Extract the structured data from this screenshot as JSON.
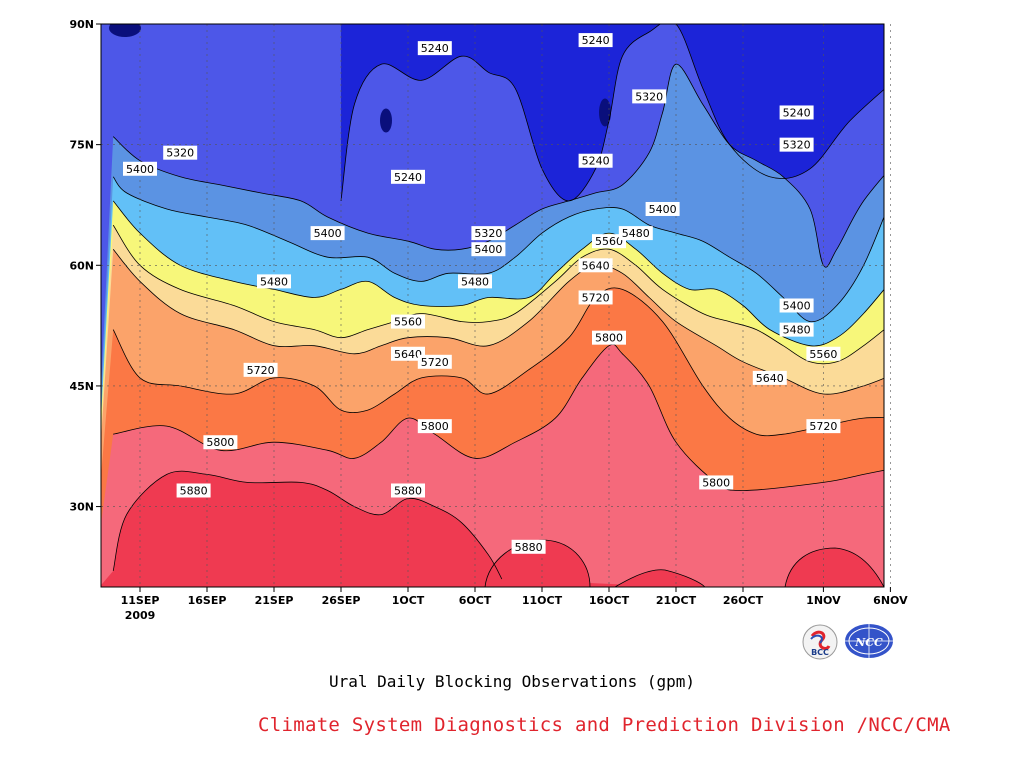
{
  "chart_data": {
    "type": "contour",
    "title": "Ural Daily Blocking Observations (gpm)",
    "credit": "Climate System Diagnostics and Prediction Division /NCC/CMA",
    "year_label": "2009",
    "x_ticks": [
      "11SEP",
      "16SEP",
      "21SEP",
      "26SEP",
      "1OCT",
      "6OCT",
      "11OCT",
      "16OCT",
      "21OCT",
      "26OCT",
      "1NOV",
      "6NOV"
    ],
    "y_ticks": [
      "30N",
      "45N",
      "60N",
      "75N",
      "90N"
    ],
    "ylim": [
      20,
      90
    ],
    "levels": [
      5240,
      5320,
      5400,
      5480,
      5560,
      5640,
      5720,
      5800,
      5880
    ],
    "fill_colors": [
      "#0a0f7c",
      "#1c24d8",
      "#4d57e8",
      "#5b93e3",
      "#62c0f7",
      "#f7f77a",
      "#fbdb98",
      "#fba36a",
      "#fb7845",
      "#f5697b",
      "#ef3a51"
    ],
    "contours": [
      {
        "level": 5880,
        "x": [
          "9SEP",
          "10SEP",
          "13SEP",
          "16SEP",
          "19SEP",
          "23SEP",
          "25SEP",
          "27SEP",
          "29SEP",
          "1OCT",
          "3OCT",
          "5OCT",
          "7OCT",
          "8OCT"
        ],
        "y": [
          22,
          29,
          34,
          34,
          33,
          33,
          32,
          30,
          29,
          31,
          30,
          28,
          24,
          21
        ]
      },
      {
        "level": 5800,
        "x": [
          "9SEP",
          "13SEP",
          "17SEP",
          "21SEP",
          "25SEP",
          "27SEP",
          "29SEP",
          "1OCT",
          "3OCT",
          "6OCT",
          "9OCT",
          "12OCT",
          "14OCT",
          "16OCT",
          "17OCT",
          "19OCT",
          "21OCT",
          "24OCT",
          "26OCT",
          "1NOV",
          "4NOV",
          "7NOV"
        ],
        "y": [
          39,
          40,
          37,
          38,
          37,
          36,
          38,
          41,
          39,
          36,
          38,
          41,
          46,
          50,
          49,
          45,
          38,
          33,
          32,
          33,
          34,
          35
        ]
      },
      {
        "level": 5720,
        "x": [
          "9SEP",
          "11SEP",
          "14SEP",
          "18SEP",
          "21SEP",
          "24SEP",
          "26SEP",
          "28SEP",
          "30SEP",
          "2OCT",
          "5OCT",
          "7OCT",
          "10OCT",
          "13OCT",
          "15OCT",
          "17OCT",
          "20OCT",
          "23OCT",
          "25OCT",
          "27OCT",
          "29OCT",
          "1NOV",
          "4NOV",
          "7NOV"
        ],
        "y": [
          52,
          46,
          45,
          44,
          46,
          45,
          42,
          42,
          44,
          46,
          46,
          44,
          47,
          51,
          56,
          57,
          53,
          45,
          41,
          39,
          39,
          40,
          41,
          41
        ]
      },
      {
        "level": 5640,
        "x": [
          "9SEP",
          "11SEP",
          "14SEP",
          "18SEP",
          "21SEP",
          "24SEP",
          "27SEP",
          "29SEP",
          "1OCT",
          "4OCT",
          "7OCT",
          "10OCT",
          "13OCT",
          "15OCT",
          "17OCT",
          "19OCT",
          "21OCT",
          "24OCT",
          "26OCT",
          "29OCT",
          "1NOV",
          "4NOV",
          "7NOV"
        ],
        "y": [
          62,
          58,
          54,
          52,
          50,
          50,
          49,
          50,
          51,
          51,
          50,
          53,
          58,
          60,
          59,
          56,
          53,
          50,
          48,
          46,
          44,
          45,
          47
        ]
      },
      {
        "level": 5560,
        "x": [
          "9SEP",
          "11SEP",
          "14SEP",
          "18SEP",
          "21SEP",
          "24SEP",
          "26SEP",
          "28SEP",
          "30SEP",
          "2OCT",
          "5OCT",
          "7OCT",
          "9OCT",
          "12OCT",
          "14OCT",
          "16OCT",
          "18OCT",
          "20OCT",
          "23OCT",
          "25OCT",
          "27OCT",
          "29OCT",
          "31OCT",
          "2NOV",
          "4NOV",
          "7NOV"
        ],
        "y": [
          65,
          60,
          57,
          55,
          53,
          52,
          51,
          52,
          53,
          54,
          53,
          53,
          54,
          58,
          61,
          62,
          60,
          57,
          54,
          53,
          52,
          50,
          48,
          48,
          50,
          54
        ]
      },
      {
        "level": 5480,
        "x": [
          "9SEP",
          "11SEP",
          "14SEP",
          "18SEP",
          "21SEP",
          "24SEP",
          "26SEP",
          "28SEP",
          "30SEP",
          "2OCT",
          "5OCT",
          "7OCT",
          "10OCT",
          "12OCT",
          "14OCT",
          "16OCT",
          "18OCT",
          "20OCT",
          "22OCT",
          "24OCT",
          "26OCT",
          "28OCT",
          "31OCT",
          "2NOV",
          "4NOV",
          "7NOV"
        ],
        "y": [
          68,
          64,
          60,
          58,
          57,
          56,
          57,
          58,
          56,
          55,
          55,
          56,
          56,
          59,
          62,
          64,
          62,
          59,
          57,
          57,
          55,
          52,
          50,
          51,
          54,
          60
        ]
      },
      {
        "level": 5400,
        "x": [
          "9SEP",
          "10SEP",
          "13SEP",
          "16SEP",
          "19SEP",
          "22SEP",
          "25SEP",
          "28SEP",
          "30SEP",
          "2OCT",
          "4OCT",
          "7OCT",
          "9OCT",
          "11OCT",
          "13OCT",
          "15OCT",
          "17OCT",
          "19OCT",
          "21OCT",
          "23OCT",
          "25OCT",
          "27OCT",
          "29OCT",
          "31OCT",
          "2NOV",
          "4NOV",
          "6NOV",
          "7NOV"
        ],
        "y": [
          71,
          69,
          67,
          66,
          65,
          63,
          61,
          61,
          59,
          58,
          59,
          59,
          61,
          64,
          66,
          67,
          67,
          65,
          64,
          63,
          61,
          59,
          56,
          53,
          55,
          60,
          68,
          72
        ]
      },
      {
        "level": 5320,
        "x": [
          "9SEP",
          "11SEP",
          "14SEP",
          "17SEP",
          "20SEP",
          "23SEP",
          "25SEP",
          "28SEP",
          "1OCT",
          "3OCT",
          "5OCT",
          "7OCT",
          "9OCT",
          "11OCT",
          "13OCT",
          "15OCT",
          "17OCT",
          "19OCT",
          "20OCT",
          "21OCT",
          "23OCT",
          "25OCT",
          "27OCT",
          "29OCT",
          "31OCT",
          "1NOV",
          "2NOV",
          "4NOV",
          "7NOV"
        ],
        "y": [
          76,
          73,
          71,
          70,
          69,
          68,
          66,
          64,
          63,
          62,
          62,
          63,
          65,
          67,
          68,
          69,
          70,
          74,
          79,
          85,
          80,
          75,
          73,
          71,
          67,
          60,
          62,
          68,
          74
        ]
      },
      {
        "level": 5240,
        "x": [
          "26SEP",
          "27SEP",
          "29SEP",
          "2OCT",
          "5OCT",
          "7OCT",
          "9OCT",
          "11OCT",
          "13OCT",
          "15OCT",
          "16OCT",
          "17OCT",
          "19OCT",
          "21OCT",
          "23OCT",
          "25OCT",
          "28OCT",
          "31OCT",
          "3NOV",
          "7NOV"
        ],
        "y": [
          68,
          80,
          85,
          83,
          86,
          84,
          82,
          72,
          68,
          72,
          78,
          86,
          89,
          90,
          82,
          75,
          71,
          72,
          78,
          84
        ]
      }
    ],
    "contour_labels": [
      {
        "text": "5240",
        "x": "3OCT",
        "y": 87
      },
      {
        "text": "5240",
        "x": "15OCT",
        "y": 88
      },
      {
        "text": "5320",
        "x": "19OCT",
        "y": 81
      },
      {
        "text": "5240",
        "x": "30OCT",
        "y": 79
      },
      {
        "text": "5320",
        "x": "14SEP",
        "y": 74
      },
      {
        "text": "5240",
        "x": "15OCT",
        "y": 73
      },
      {
        "text": "5320",
        "x": "30OCT",
        "y": 75
      },
      {
        "text": "5400",
        "x": "11SEP",
        "y": 72
      },
      {
        "text": "5240",
        "x": "1OCT",
        "y": 71
      },
      {
        "text": "5400",
        "x": "20OCT",
        "y": 67
      },
      {
        "text": "5400",
        "x": "25SEP",
        "y": 64
      },
      {
        "text": "5320",
        "x": "7OCT",
        "y": 64
      },
      {
        "text": "5560",
        "x": "16OCT",
        "y": 63
      },
      {
        "text": "5480",
        "x": "18OCT",
        "y": 64
      },
      {
        "text": "5400",
        "x": "7OCT",
        "y": 62
      },
      {
        "text": "5640",
        "x": "15OCT",
        "y": 60
      },
      {
        "text": "5480",
        "x": "21SEP",
        "y": 58
      },
      {
        "text": "5480",
        "x": "6OCT",
        "y": 58
      },
      {
        "text": "5720",
        "x": "15OCT",
        "y": 56
      },
      {
        "text": "5400",
        "x": "30OCT",
        "y": 55
      },
      {
        "text": "5560",
        "x": "1OCT",
        "y": 53
      },
      {
        "text": "5480",
        "x": "30OCT",
        "y": 52
      },
      {
        "text": "5800",
        "x": "16OCT",
        "y": 51
      },
      {
        "text": "5640",
        "x": "1OCT",
        "y": 49
      },
      {
        "text": "5560",
        "x": "1NOV",
        "y": 49
      },
      {
        "text": "5720",
        "x": "3OCT",
        "y": 48
      },
      {
        "text": "5720",
        "x": "20SEP",
        "y": 47
      },
      {
        "text": "5640",
        "x": "28OCT",
        "y": 46
      },
      {
        "text": "5800",
        "x": "3OCT",
        "y": 40
      },
      {
        "text": "5720",
        "x": "1NOV",
        "y": 40
      },
      {
        "text": "5800",
        "x": "17SEP",
        "y": 38
      },
      {
        "text": "5800",
        "x": "24OCT",
        "y": 33
      },
      {
        "text": "5880",
        "x": "15SEP",
        "y": 32
      },
      {
        "text": "5880",
        "x": "1OCT",
        "y": 32
      },
      {
        "text": "5880",
        "x": "10OCT",
        "y": 25
      }
    ],
    "grid": true,
    "logos": [
      "BCC",
      "NCC"
    ]
  }
}
